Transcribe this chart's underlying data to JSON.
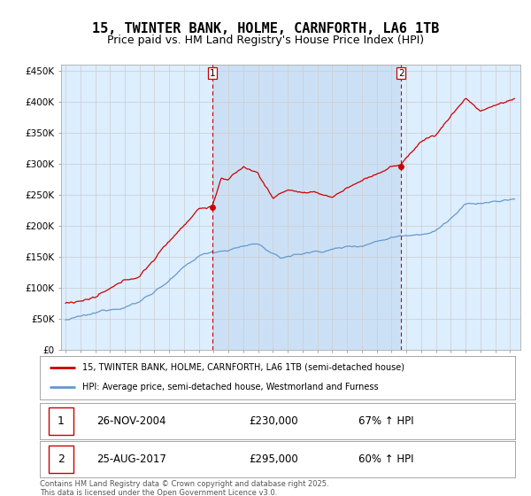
{
  "title": "15, TWINTER BANK, HOLME, CARNFORTH, LA6 1TB",
  "subtitle": "Price paid vs. HM Land Registry's House Price Index (HPI)",
  "ylabel_ticks": [
    "£0",
    "£50K",
    "£100K",
    "£150K",
    "£200K",
    "£250K",
    "£300K",
    "£350K",
    "£400K",
    "£450K"
  ],
  "ytick_values": [
    0,
    50000,
    100000,
    150000,
    200000,
    250000,
    300000,
    350000,
    400000,
    450000
  ],
  "ylim": [
    0,
    460000
  ],
  "xlim_start": 1994.7,
  "xlim_end": 2025.7,
  "purchase1_x": 2004.9,
  "purchase1_y": 230000,
  "purchase1_label": "1",
  "purchase1_date": "26-NOV-2004",
  "purchase1_price": "£230,000",
  "purchase1_hpi": "67% ↑ HPI",
  "purchase2_x": 2017.65,
  "purchase2_y": 295000,
  "purchase2_label": "2",
  "purchase2_date": "25-AUG-2017",
  "purchase2_price": "£295,000",
  "purchase2_hpi": "60% ↑ HPI",
  "legend_line1": "15, TWINTER BANK, HOLME, CARNFORTH, LA6 1TB (semi-detached house)",
  "legend_line2": "HPI: Average price, semi-detached house, Westmorland and Furness",
  "footer": "Contains HM Land Registry data © Crown copyright and database right 2025.\nThis data is licensed under the Open Government Licence v3.0.",
  "line_color_red": "#cc0000",
  "line_color_blue": "#6699cc",
  "background_plot": "#ddeeff",
  "background_shaded": "#cce0f5",
  "vline_color": "#cc0000",
  "grid_color": "#cccccc",
  "title_fontsize": 11,
  "subtitle_fontsize": 9,
  "tick_fontsize": 7.5
}
